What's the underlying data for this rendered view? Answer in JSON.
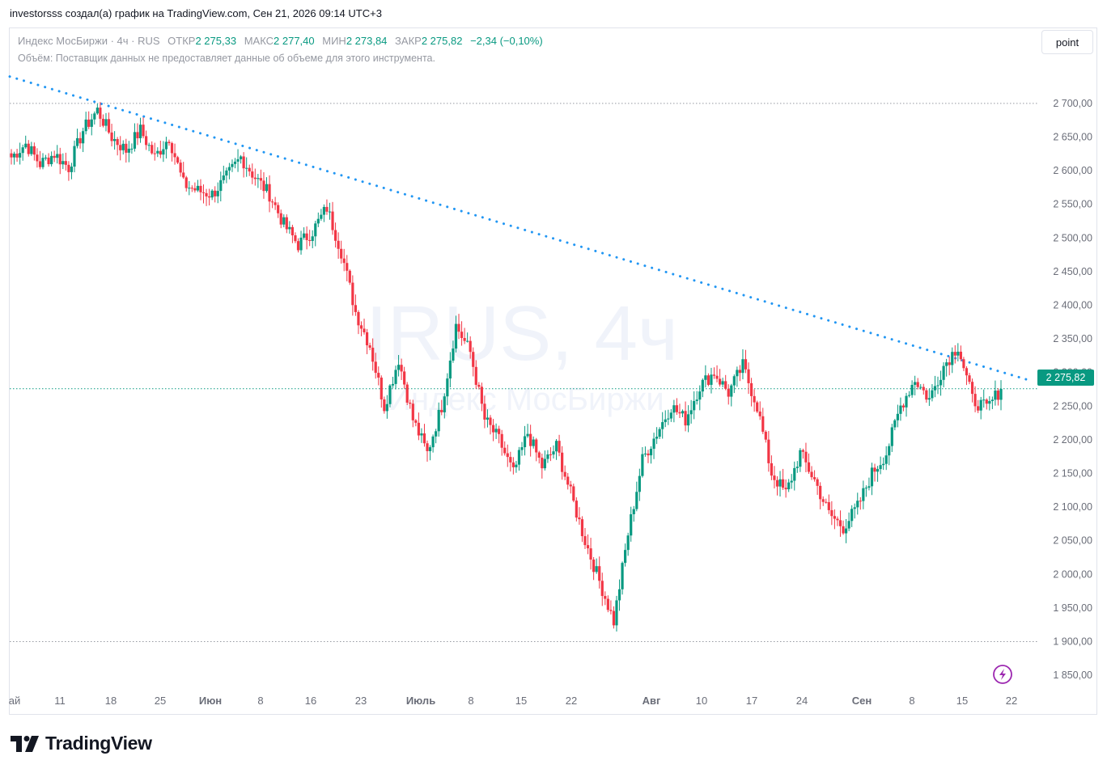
{
  "caption": "investorsss создал(а) график на TradingView.com, Сен 21, 2026 09:14 UTC+3",
  "legend": {
    "symbol": "Индекс МосБиржи · 4ч · RUS",
    "open_label": "ОТКР",
    "open": "2 275,33",
    "high_label": "МАКС",
    "high": "2 277,40",
    "low_label": "МИН",
    "low": "2 273,84",
    "close_label": "ЗАКР",
    "close": "2 275,82",
    "change": "−2,34 (−0,10%)"
  },
  "volume_note": "Объём: Поставщик данных не предоставляет данные об объеме для этого инструмента.",
  "point_button": "point",
  "watermark": {
    "ticker": "IRUS, 4ч",
    "name": "Индекс МосБиржи"
  },
  "last_price_badge": "2 275,82",
  "logo_text": "TradingView",
  "icons": {
    "lightning": "lightning-icon",
    "logo": "tradingview-logo-icon"
  },
  "colors": {
    "up": "#089981",
    "down": "#f23645",
    "trendline": "#2196f3",
    "badge": "#089981"
  },
  "chart_data": {
    "type": "candlestick",
    "title": "Индекс МосБиржи · 4ч · RUS",
    "ylim": [
      1820,
      2760
    ],
    "y_ticks": [
      "2 700,00",
      "2 650,00",
      "2 600,00",
      "2 550,00",
      "2 500,00",
      "2 450,00",
      "2 400,00",
      "2 350,00",
      "2 300,00",
      "2 250,00",
      "2 200,00",
      "2 150,00",
      "2 100,00",
      "2 050,00",
      "2 000,00",
      "1 950,00",
      "1 900,00",
      "1 850,00"
    ],
    "y_tick_values": [
      2700,
      2650,
      2600,
      2550,
      2500,
      2450,
      2400,
      2350,
      2300,
      2250,
      2200,
      2150,
      2100,
      2050,
      2000,
      1950,
      1900,
      1850
    ],
    "x_ticks": [
      "ай",
      "11",
      "18",
      "25",
      "Июн",
      "8",
      "16",
      "23",
      "Июль",
      "8",
      "15",
      "22",
      "Авг",
      "10",
      "17",
      "24",
      "Сен",
      "8",
      "15",
      "22"
    ],
    "x_tick_bold": [
      false,
      false,
      false,
      false,
      true,
      false,
      false,
      false,
      true,
      false,
      false,
      false,
      true,
      false,
      false,
      false,
      true,
      false,
      false,
      false
    ],
    "series_close": [
      2620,
      2640,
      2610,
      2625,
      2605,
      2660,
      2690,
      2650,
      2630,
      2660,
      2620,
      2650,
      2580,
      2570,
      2565,
      2590,
      2620,
      2590,
      2565,
      2520,
      2490,
      2510,
      2545,
      2480,
      2390,
      2340,
      2250,
      2320,
      2230,
      2180,
      2250,
      2370,
      2330,
      2230,
      2200,
      2150,
      2210,
      2160,
      2190,
      2120,
      2050,
      1990,
      1930,
      2060,
      2170,
      2210,
      2250,
      2230,
      2280,
      2300,
      2270,
      2310,
      2250,
      2150,
      2120,
      2180,
      2140,
      2090,
      2070,
      2100,
      2150,
      2180,
      2250,
      2290,
      2260,
      2310,
      2340,
      2260,
      2246,
      2276
    ],
    "trendline": {
      "start": {
        "label": "ай",
        "value": 2740
      },
      "end": {
        "label": "22",
        "value": 2287
      }
    },
    "reference_lines": [
      2700,
      2275.82,
      1900
    ],
    "last_value": 2275.82
  }
}
